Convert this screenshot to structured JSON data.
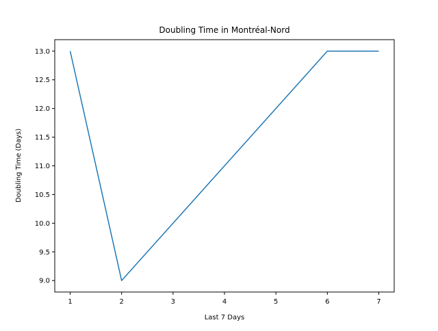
{
  "chart_data": {
    "type": "line",
    "title": "Doubling Time in  Montréal-Nord",
    "xlabel": "Last 7 Days",
    "ylabel": "Doubling Time (Days)",
    "x": [
      1,
      2,
      3,
      4,
      5,
      6,
      7
    ],
    "series": [
      {
        "values": [
          13.0,
          9.0,
          10.0,
          11.0,
          12.0,
          13.0,
          13.0
        ],
        "color": "#1f77b4"
      }
    ],
    "xlim": [
      0.7,
      7.3
    ],
    "ylim": [
      8.8,
      13.2
    ],
    "xticks": [
      "1",
      "2",
      "3",
      "4",
      "5",
      "6",
      "7"
    ],
    "yticks": [
      "9.0",
      "9.5",
      "10.0",
      "10.5",
      "11.0",
      "11.5",
      "12.0",
      "12.5",
      "13.0"
    ],
    "grid": false,
    "legend": "none"
  }
}
